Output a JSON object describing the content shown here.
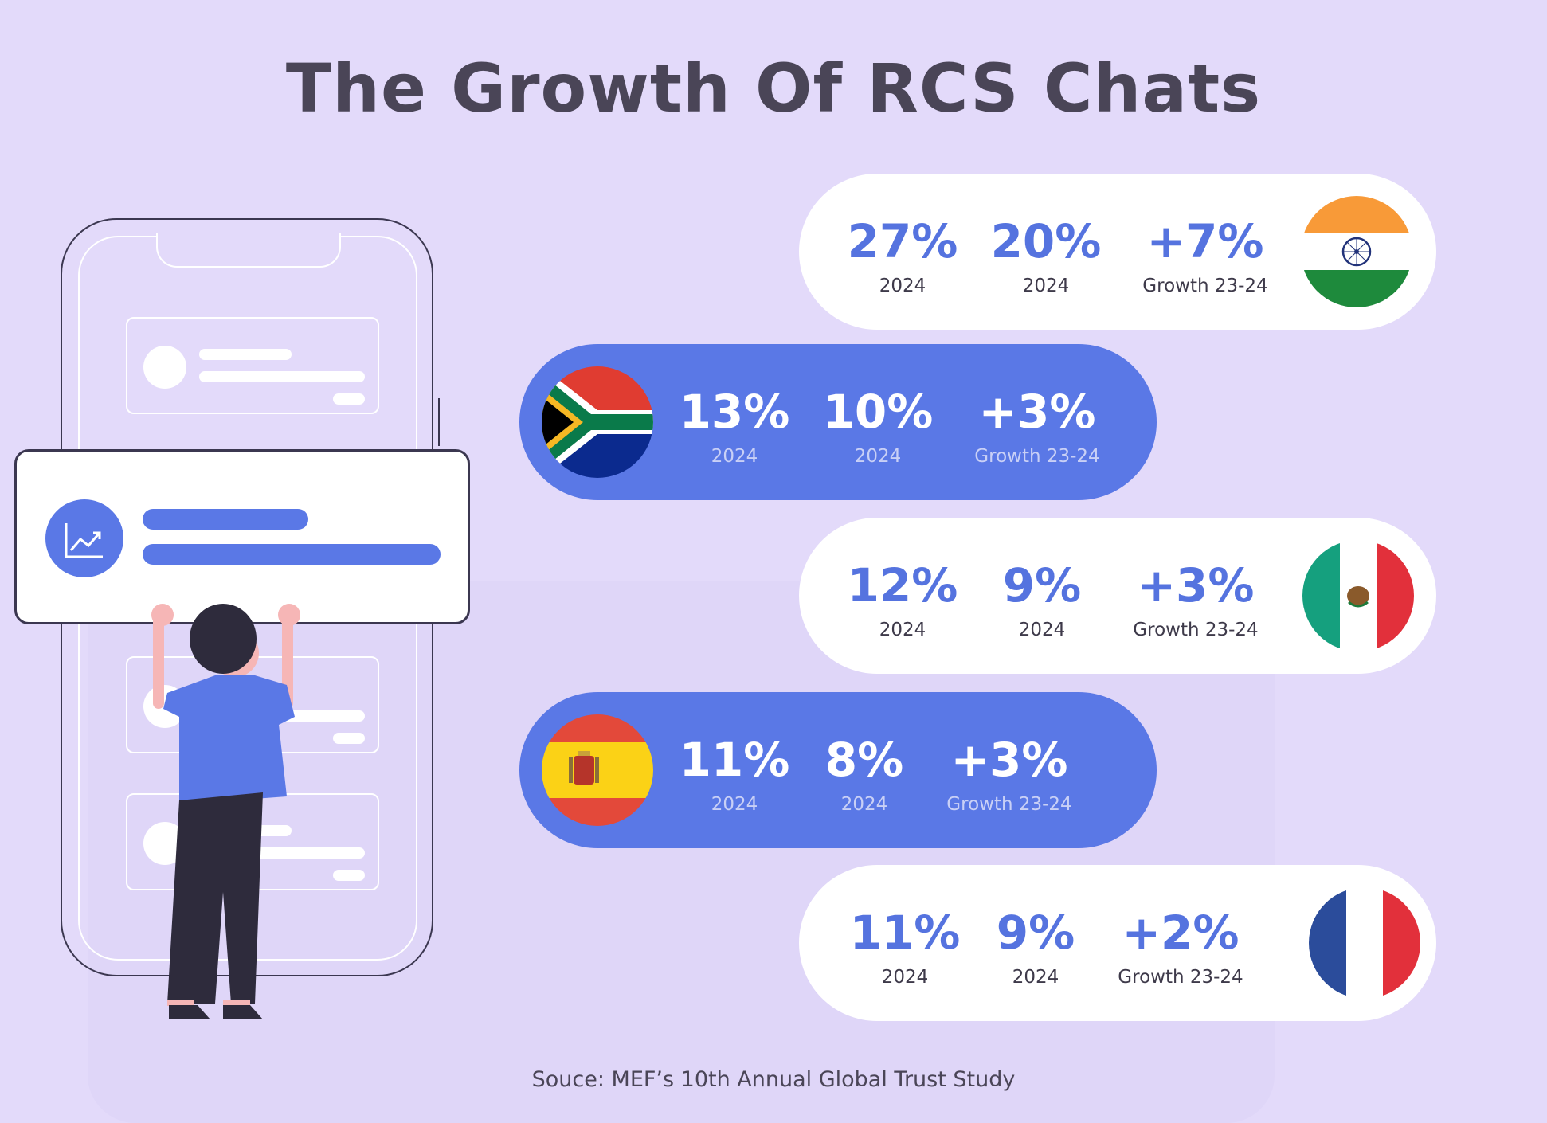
{
  "title": "The Growth Of RCS Chats",
  "source": "Souce: MEF’s 10th Annual Global Trust Study",
  "rows": [
    {
      "country_flag": "india-flag",
      "v1": "27%",
      "l1": "2024",
      "v2": "20%",
      "l2": "2024",
      "v3": "+7%",
      "l3": "Growth 23-24"
    },
    {
      "country_flag": "south-africa-flag",
      "v1": "13%",
      "l1": "2024",
      "v2": "10%",
      "l2": "2024",
      "v3": "+3%",
      "l3": "Growth 23-24"
    },
    {
      "country_flag": "mexico-flag",
      "v1": "12%",
      "l1": "2024",
      "v2": "9%",
      "l2": "2024",
      "v3": "+3%",
      "l3": "Growth 23-24"
    },
    {
      "country_flag": "spain-flag",
      "v1": "11%",
      "l1": "2024",
      "v2": "8%",
      "l2": "2024",
      "v3": "+3%",
      "l3": "Growth 23-24"
    },
    {
      "country_flag": "france-flag",
      "v1": "11%",
      "l1": "2024",
      "v2": "9%",
      "l2": "2024",
      "v3": "+2%",
      "l3": "Growth 23-24"
    }
  ],
  "colors": {
    "background": "#e3dafa",
    "accent_blue": "#5a78e6",
    "text_dark": "#4a4557",
    "white": "#ffffff"
  }
}
